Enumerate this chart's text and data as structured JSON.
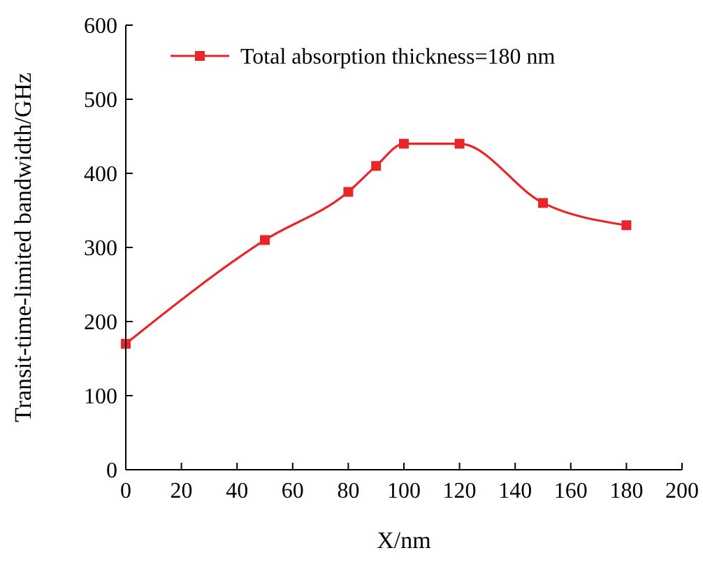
{
  "chart_data": {
    "type": "line",
    "xlabel": "X/nm",
    "ylabel": "Transit-time-limited bandwidth/GHz",
    "x": [
      0,
      50,
      80,
      90,
      100,
      120,
      150,
      180
    ],
    "series": [
      {
        "name": "Total absorption thickness=180 nm",
        "color": "#e8262a",
        "values": [
          170,
          310,
          375,
          410,
          440,
          440,
          360,
          330
        ]
      }
    ],
    "xlim": [
      0,
      200
    ],
    "xticks": [
      0,
      20,
      40,
      60,
      80,
      100,
      120,
      140,
      160,
      180,
      200
    ],
    "ylim": [
      0,
      600
    ],
    "yticks": [
      0,
      100,
      200,
      300,
      400,
      500,
      600
    ],
    "marker": "square",
    "line_style": "solid",
    "legend": "top",
    "grid": false
  }
}
